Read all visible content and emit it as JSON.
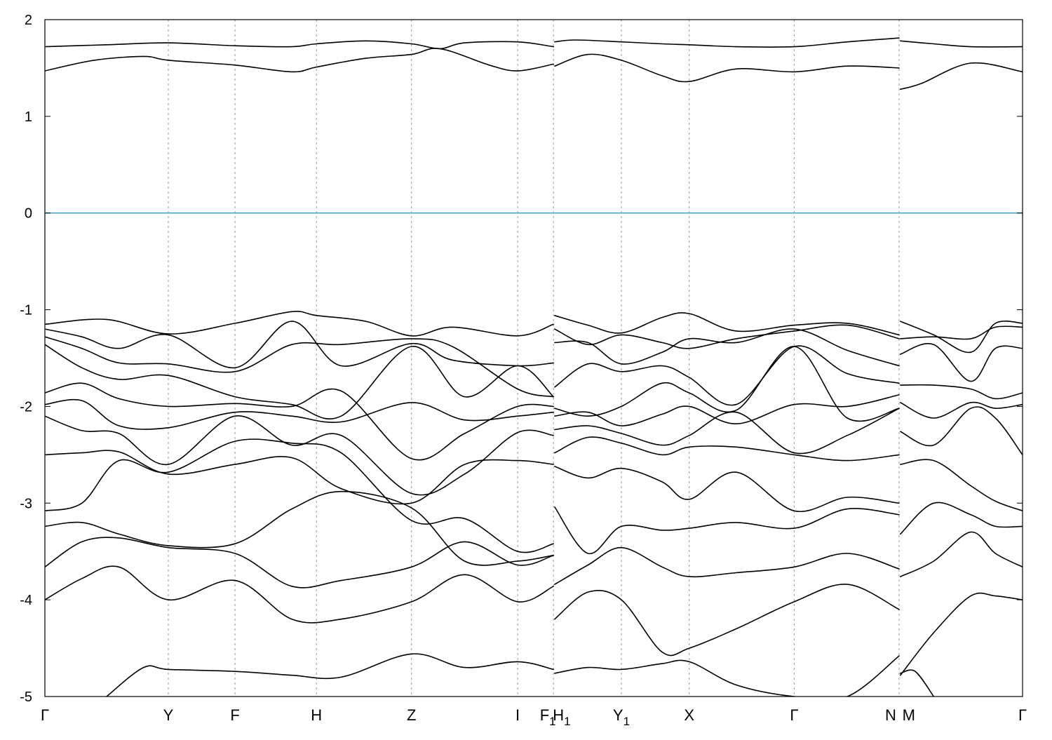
{
  "chart_data": {
    "type": "line",
    "title": "",
    "xlabel": "",
    "ylabel": "",
    "ylim": [
      -5,
      2
    ],
    "yticks": [
      -5,
      -4,
      -3,
      -2,
      -1,
      0,
      1,
      2
    ],
    "ytick_labels": [
      "-5",
      "-4",
      "-3",
      "-2",
      "-1",
      "0",
      "1",
      "2"
    ],
    "grid": false,
    "legend": "none",
    "kpoints": [
      {
        "label": "Γ",
        "sub": "",
        "pos": 0.0
      },
      {
        "label": "Y",
        "sub": "",
        "pos": 1.0
      },
      {
        "label": "F",
        "sub": "",
        "pos": 1.54
      },
      {
        "label": "H",
        "sub": "",
        "pos": 2.2
      },
      {
        "label": "Z",
        "sub": "",
        "pos": 2.97
      },
      {
        "label": "I",
        "sub": "",
        "pos": 3.83
      },
      {
        "label": "F",
        "sub": "1",
        "pos": 4.12
      },
      {
        "label": "H",
        "sub": "1",
        "pos": 4.13
      },
      {
        "label": "Y",
        "sub": "1",
        "pos": 4.67
      },
      {
        "label": "X",
        "sub": "",
        "pos": 5.22
      },
      {
        "label": "Γ",
        "sub": "",
        "pos": 6.07
      },
      {
        "label": "N",
        "sub": "",
        "pos": 6.92
      },
      {
        "label": "M",
        "sub": "",
        "pos": 6.93
      },
      {
        "label": "Γ",
        "sub": "",
        "pos": 7.92
      }
    ],
    "kline_positions": [
      1.0,
      1.54,
      2.2,
      2.97,
      3.83,
      4.12,
      4.67,
      5.22,
      6.07,
      6.92
    ],
    "fermi_level": 0,
    "fermi_color": "#4aa6c6",
    "band_color": "#000000",
    "series": [
      {
        "x": [
          0,
          0.5,
          1.0,
          1.54,
          2.0,
          2.2,
          2.6,
          2.97,
          3.2,
          3.4,
          3.83,
          4.12
        ],
        "y": [
          1.72,
          1.74,
          1.76,
          1.73,
          1.72,
          1.75,
          1.78,
          1.75,
          1.7,
          1.76,
          1.77,
          1.72
        ]
      },
      {
        "x": [
          0,
          0.4,
          0.8,
          1.0,
          1.54,
          2.0,
          2.2,
          2.6,
          2.97,
          3.2,
          3.6,
          3.83,
          4.12
        ],
        "y": [
          1.47,
          1.58,
          1.62,
          1.58,
          1.53,
          1.46,
          1.51,
          1.6,
          1.64,
          1.7,
          1.53,
          1.47,
          1.54
        ]
      },
      {
        "x": [
          4.13,
          4.3,
          4.67,
          5.0,
          5.22,
          5.6,
          6.07,
          6.5,
          6.92
        ],
        "y": [
          1.77,
          1.79,
          1.77,
          1.75,
          1.74,
          1.72,
          1.72,
          1.77,
          1.81
        ]
      },
      {
        "x": [
          4.13,
          4.4,
          4.67,
          5.0,
          5.22,
          5.6,
          6.07,
          6.5,
          6.92
        ],
        "y": [
          1.52,
          1.64,
          1.58,
          1.42,
          1.36,
          1.49,
          1.46,
          1.52,
          1.5
        ]
      },
      {
        "x": [
          6.93,
          7.2,
          7.5,
          7.92
        ],
        "y": [
          1.78,
          1.75,
          1.72,
          1.72
        ]
      },
      {
        "x": [
          6.93,
          7.1,
          7.5,
          7.92
        ],
        "y": [
          1.28,
          1.34,
          1.55,
          1.46
        ]
      },
      {
        "x": [
          0,
          0.5,
          1.0,
          1.54,
          2.0,
          2.2,
          2.6,
          2.97,
          3.3,
          3.83,
          4.12
        ],
        "y": [
          -1.15,
          -1.1,
          -1.25,
          -1.14,
          -1.02,
          -1.06,
          -1.12,
          -1.27,
          -1.18,
          -1.27,
          -1.15
        ]
      },
      {
        "x": [
          0,
          0.3,
          0.6,
          1.0,
          1.54,
          2.0,
          2.4,
          2.97,
          3.3,
          3.83,
          4.12
        ],
        "y": [
          -1.2,
          -1.28,
          -1.4,
          -1.26,
          -1.6,
          -1.12,
          -1.58,
          -1.35,
          -1.52,
          -1.58,
          -1.55
        ]
      },
      {
        "x": [
          0,
          0.3,
          0.6,
          1.0,
          1.54,
          2.0,
          2.4,
          2.97,
          3.3,
          3.83,
          4.12
        ],
        "y": [
          -1.28,
          -1.4,
          -1.55,
          -1.56,
          -1.64,
          -1.36,
          -1.36,
          -1.3,
          -1.38,
          -1.82,
          -1.9
        ]
      },
      {
        "x": [
          0,
          0.3,
          0.6,
          1.0,
          1.54,
          2.0,
          2.4,
          2.97,
          3.4,
          3.83,
          4.12
        ],
        "y": [
          -1.36,
          -1.6,
          -1.72,
          -1.68,
          -1.9,
          -1.98,
          -2.1,
          -1.38,
          -1.9,
          -1.58,
          -1.9
        ]
      },
      {
        "x": [
          0,
          0.3,
          0.6,
          1.0,
          1.54,
          2.0,
          2.4,
          2.97,
          3.4,
          3.83,
          4.12
        ],
        "y": [
          -1.86,
          -1.76,
          -1.92,
          -2.0,
          -1.97,
          -2.0,
          -1.84,
          -2.54,
          -2.28,
          -2.0,
          -2.0
        ]
      },
      {
        "x": [
          0,
          0.3,
          0.6,
          1.0,
          1.54,
          2.0,
          2.4,
          2.97,
          3.4,
          3.83,
          4.12
        ],
        "y": [
          -1.98,
          -1.94,
          -2.2,
          -2.22,
          -2.06,
          -2.1,
          -2.16,
          -1.96,
          -2.14,
          -2.1,
          -2.06
        ]
      },
      {
        "x": [
          0,
          0.3,
          0.6,
          1.0,
          1.54,
          2.0,
          2.4,
          2.97,
          3.4,
          3.83,
          4.12
        ],
        "y": [
          -2.1,
          -2.25,
          -2.28,
          -2.6,
          -2.1,
          -2.4,
          -2.3,
          -2.9,
          -2.7,
          -2.27,
          -2.3
        ]
      },
      {
        "x": [
          0,
          0.3,
          0.6,
          1.0,
          1.54,
          2.0,
          2.4,
          2.97,
          3.4,
          3.83,
          4.12
        ],
        "y": [
          -2.5,
          -2.48,
          -2.47,
          -2.7,
          -2.6,
          -2.53,
          -2.85,
          -3.0,
          -2.6,
          -2.56,
          -2.6
        ]
      },
      {
        "x": [
          0,
          0.3,
          0.6,
          1.0,
          1.54,
          2.0,
          2.4,
          2.97,
          3.4,
          3.83,
          4.12
        ],
        "y": [
          -3.08,
          -3.0,
          -2.56,
          -2.68,
          -2.36,
          -2.38,
          -2.48,
          -3.18,
          -3.16,
          -3.5,
          -3.42
        ]
      },
      {
        "x": [
          0,
          0.3,
          0.6,
          1.0,
          1.54,
          2.0,
          2.4,
          2.97,
          3.4,
          3.83,
          4.12
        ],
        "y": [
          -3.24,
          -3.2,
          -3.32,
          -3.44,
          -3.42,
          -3.06,
          -2.88,
          -3.05,
          -3.6,
          -3.6,
          -3.54
        ]
      },
      {
        "x": [
          0,
          0.3,
          0.6,
          1.0,
          1.54,
          2.0,
          2.4,
          2.97,
          3.4,
          3.83,
          4.12
        ],
        "y": [
          -3.66,
          -3.4,
          -3.36,
          -3.46,
          -3.52,
          -3.86,
          -3.8,
          -3.66,
          -3.4,
          -3.64,
          -3.54
        ]
      },
      {
        "x": [
          0,
          0.3,
          0.6,
          1.0,
          1.54,
          2.0,
          2.4,
          2.97,
          3.4,
          3.83,
          4.12
        ],
        "y": [
          -4.0,
          -3.78,
          -3.66,
          -4.0,
          -3.8,
          -4.2,
          -4.2,
          -4.02,
          -3.74,
          -4.02,
          -3.86
        ]
      },
      {
        "x": [
          0.5,
          0.8,
          1.0,
          1.54,
          2.0,
          2.4,
          2.97,
          3.4,
          3.83,
          4.12
        ],
        "y": [
          -5.0,
          -4.7,
          -4.72,
          -4.74,
          -4.78,
          -4.8,
          -4.56,
          -4.7,
          -4.64,
          -4.72
        ]
      },
      {
        "x": [
          4.13,
          4.4,
          4.67,
          5.0,
          5.22,
          5.6,
          6.07,
          6.5,
          6.92
        ],
        "y": [
          -1.06,
          -1.16,
          -1.24,
          -1.08,
          -1.04,
          -1.22,
          -1.16,
          -1.14,
          -1.26
        ]
      },
      {
        "x": [
          4.13,
          4.4,
          4.67,
          5.0,
          5.22,
          5.6,
          6.07,
          6.5,
          6.92
        ],
        "y": [
          -1.2,
          -1.36,
          -1.26,
          -1.34,
          -1.4,
          -1.3,
          -1.22,
          -1.16,
          -1.3
        ]
      },
      {
        "x": [
          4.13,
          4.4,
          4.67,
          5.0,
          5.22,
          5.6,
          6.07,
          6.5,
          6.92
        ],
        "y": [
          -1.34,
          -1.34,
          -1.56,
          -1.44,
          -1.3,
          -1.34,
          -1.2,
          -1.42,
          -1.58
        ]
      },
      {
        "x": [
          4.13,
          4.4,
          4.67,
          5.0,
          5.22,
          5.6,
          6.07,
          6.5,
          6.92
        ],
        "y": [
          -1.8,
          -1.56,
          -1.64,
          -1.58,
          -1.7,
          -1.98,
          -1.38,
          -1.66,
          -1.76
        ]
      },
      {
        "x": [
          4.13,
          4.4,
          4.67,
          5.0,
          5.22,
          5.6,
          6.07,
          6.5,
          6.92
        ],
        "y": [
          -2.02,
          -2.1,
          -2.0,
          -1.76,
          -1.86,
          -2.04,
          -1.38,
          -2.12,
          -2.02
        ]
      },
      {
        "x": [
          4.13,
          4.4,
          4.67,
          5.0,
          5.22,
          5.6,
          6.07,
          6.5,
          6.92
        ],
        "y": [
          -2.1,
          -2.06,
          -2.2,
          -2.08,
          -2.0,
          -2.18,
          -1.98,
          -2.0,
          -1.88
        ]
      },
      {
        "x": [
          4.13,
          4.4,
          4.67,
          5.0,
          5.22,
          5.6,
          6.07,
          6.5,
          6.92
        ],
        "y": [
          -2.24,
          -2.2,
          -2.28,
          -2.4,
          -2.3,
          -2.06,
          -2.48,
          -2.3,
          -2.02
        ]
      },
      {
        "x": [
          4.13,
          4.4,
          4.67,
          5.0,
          5.22,
          5.6,
          6.07,
          6.5,
          6.92
        ],
        "y": [
          -2.48,
          -2.32,
          -2.38,
          -2.5,
          -2.42,
          -2.42,
          -2.5,
          -2.56,
          -2.5
        ]
      },
      {
        "x": [
          4.13,
          4.4,
          4.67,
          5.0,
          5.22,
          5.6,
          6.07,
          6.5,
          6.92
        ],
        "y": [
          -2.62,
          -2.74,
          -2.64,
          -2.78,
          -2.96,
          -2.68,
          -3.08,
          -2.94,
          -3.0
        ]
      },
      {
        "x": [
          4.13,
          4.4,
          4.67,
          5.0,
          5.22,
          5.6,
          6.07,
          6.5,
          6.92
        ],
        "y": [
          -3.04,
          -3.52,
          -3.24,
          -3.28,
          -3.26,
          -3.2,
          -3.26,
          -3.06,
          -3.12
        ]
      },
      {
        "x": [
          4.13,
          4.4,
          4.67,
          5.0,
          5.22,
          5.6,
          6.07,
          6.5,
          6.92
        ],
        "y": [
          -3.84,
          -3.64,
          -3.46,
          -3.66,
          -3.76,
          -3.72,
          -3.66,
          -3.52,
          -3.68
        ]
      },
      {
        "x": [
          4.13,
          4.4,
          4.67,
          5.0,
          5.22,
          5.6,
          6.07,
          6.5,
          6.92
        ],
        "y": [
          -4.2,
          -3.92,
          -4.0,
          -4.54,
          -4.5,
          -4.3,
          -4.02,
          -3.84,
          -4.1
        ]
      },
      {
        "x": [
          4.13,
          4.4,
          4.67,
          5.0,
          5.22,
          5.6,
          6.07,
          6.5,
          6.92
        ],
        "y": [
          -4.76,
          -4.7,
          -4.72,
          -4.66,
          -4.64,
          -4.88,
          -5.0,
          -5.0,
          -4.58
        ]
      },
      {
        "x": [
          6.93,
          7.2,
          7.5,
          7.7,
          7.92
        ],
        "y": [
          -1.12,
          -1.26,
          -1.44,
          -1.14,
          -1.14
        ]
      },
      {
        "x": [
          6.93,
          7.2,
          7.5,
          7.7,
          7.92
        ],
        "y": [
          -1.3,
          -1.28,
          -1.3,
          -1.18,
          -1.18
        ]
      },
      {
        "x": [
          6.93,
          7.2,
          7.5,
          7.7,
          7.92
        ],
        "y": [
          -1.46,
          -1.36,
          -1.74,
          -1.4,
          -1.4
        ]
      },
      {
        "x": [
          6.93,
          7.2,
          7.5,
          7.7,
          7.92
        ],
        "y": [
          -1.78,
          -1.78,
          -1.82,
          -1.92,
          -1.86
        ]
      },
      {
        "x": [
          6.93,
          7.2,
          7.5,
          7.7,
          7.92
        ],
        "y": [
          -1.96,
          -2.12,
          -1.96,
          -2.02,
          -1.98
        ]
      },
      {
        "x": [
          6.93,
          7.2,
          7.5,
          7.7,
          7.92
        ],
        "y": [
          -2.26,
          -2.4,
          -2.02,
          -2.12,
          -2.5
        ]
      },
      {
        "x": [
          6.93,
          7.2,
          7.5,
          7.7,
          7.92
        ],
        "y": [
          -2.6,
          -2.56,
          -2.82,
          -2.98,
          -3.08
        ]
      },
      {
        "x": [
          6.93,
          7.2,
          7.5,
          7.7,
          7.92
        ],
        "y": [
          -3.32,
          -3.0,
          -3.12,
          -3.24,
          -3.24
        ]
      },
      {
        "x": [
          6.93,
          7.2,
          7.5,
          7.7,
          7.92
        ],
        "y": [
          -3.76,
          -3.6,
          -3.3,
          -3.52,
          -3.66
        ]
      },
      {
        "x": [
          6.93,
          7.2,
          7.5,
          7.7,
          7.92
        ],
        "y": [
          -4.78,
          -4.34,
          -3.96,
          -3.96,
          -4.0
        ]
      },
      {
        "x": [
          6.93,
          7.05,
          7.2
        ],
        "y": [
          -4.76,
          -4.74,
          -5.0
        ]
      }
    ]
  }
}
